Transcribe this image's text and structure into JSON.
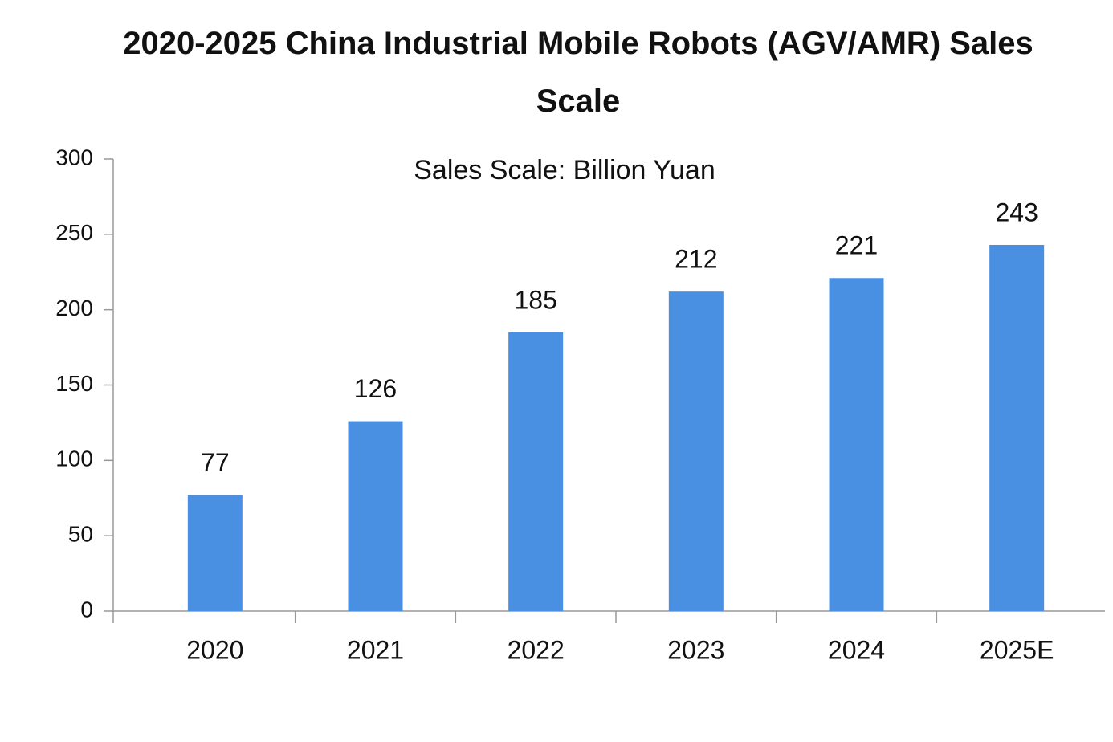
{
  "chart_data": {
    "type": "bar",
    "title": "2020-2025 China Industrial Mobile Robots (AGV/AMR) Sales Scale",
    "subtitle": "Sales Scale: Billion Yuan",
    "categories": [
      "2020",
      "2021",
      "2022",
      "2023",
      "2024",
      "2025E"
    ],
    "values": [
      77,
      126,
      185,
      212,
      221,
      243
    ],
    "color": "#4a90e2",
    "ylim": [
      0,
      300
    ],
    "yticks": [
      0,
      50,
      100,
      150,
      200,
      250,
      300
    ],
    "grid": false
  }
}
